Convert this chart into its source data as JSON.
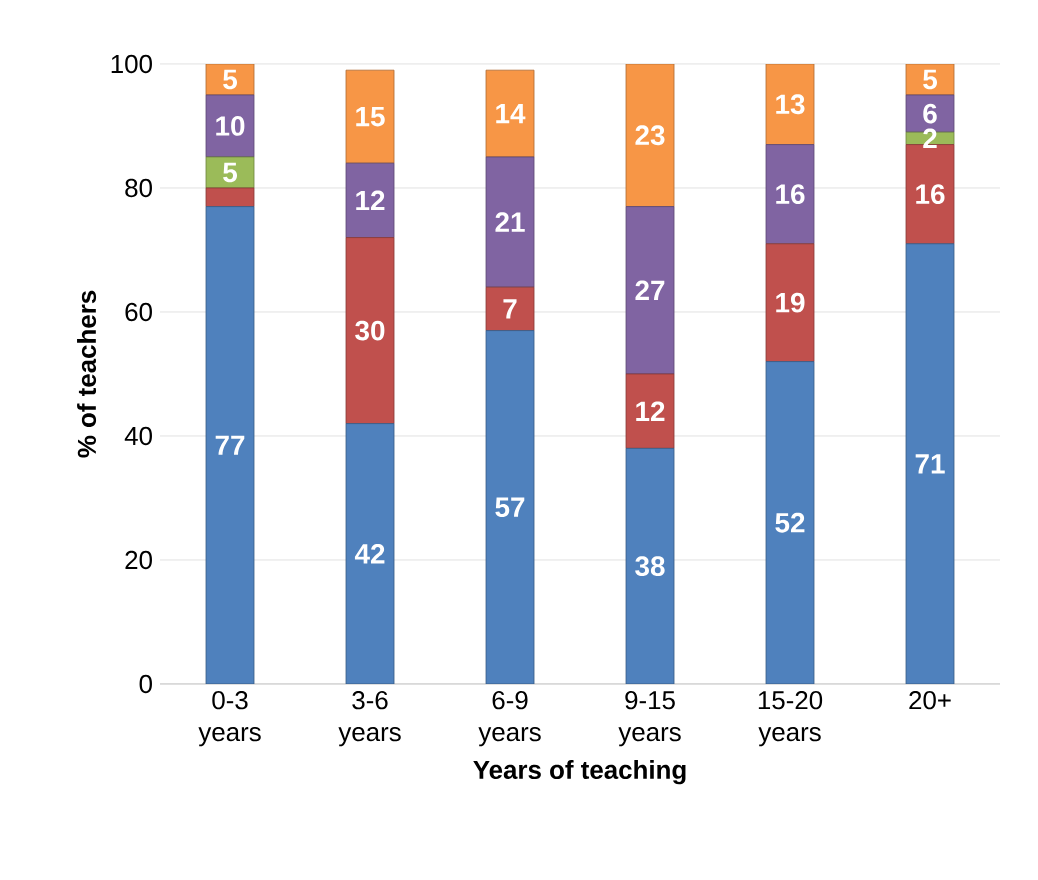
{
  "chart_data": {
    "type": "bar",
    "stacked": true,
    "xlabel": "Years of teaching",
    "ylabel": "% of teachers",
    "categories": [
      "0-3 years",
      "3-6 years",
      "6-9 years",
      "9-15 years",
      "15-20 years",
      "20+"
    ],
    "ylim": [
      0,
      100
    ],
    "yticks": [
      0,
      20,
      40,
      60,
      80,
      100
    ],
    "grid": "y",
    "series": [
      {
        "color": "#4f81bd",
        "values": [
          77,
          42,
          57,
          38,
          52,
          71
        ],
        "value_labels": [
          "77",
          "42",
          "57",
          "38",
          "52",
          "71"
        ]
      },
      {
        "color": "#c0504d",
        "values": [
          3,
          30,
          7,
          12,
          19,
          16
        ],
        "value_labels": [
          null,
          "30",
          "7",
          "12",
          "19",
          "16"
        ]
      },
      {
        "color": "#9bbb59",
        "values": [
          5,
          0,
          0,
          0,
          0,
          2
        ],
        "value_labels": [
          "5",
          null,
          null,
          null,
          null,
          "2"
        ]
      },
      {
        "color": "#8064a2",
        "values": [
          10,
          12,
          21,
          27,
          16,
          6
        ],
        "value_labels": [
          "10",
          "12",
          "21",
          "27",
          "16",
          "6"
        ]
      },
      {
        "color": "#f79646",
        "values": [
          5,
          15,
          14,
          23,
          13,
          5
        ],
        "value_labels": [
          "5",
          "15",
          "14",
          "23",
          "13",
          "5"
        ]
      }
    ]
  }
}
